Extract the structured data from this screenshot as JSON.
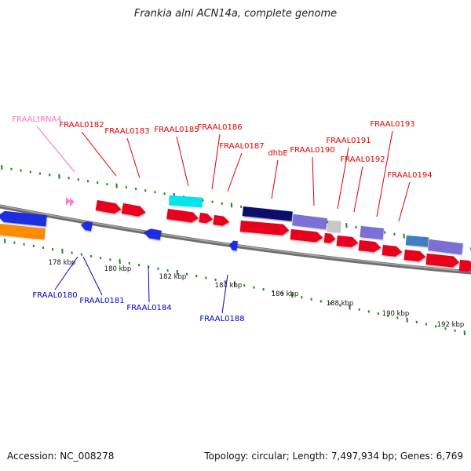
{
  "title": "Frankia alni ACN14a, complete genome",
  "footer": {
    "accession": "Accession: NC_008278",
    "stats": "Topology: circular; Length: 7,497,934 bp; Genes: 6,769"
  },
  "colors": {
    "backbone": "#8a8a8a",
    "tick": "#2e7d2e",
    "forward_label": "#e00000",
    "reverse_label": "#0000cc",
    "trna_label": "#ff70c0"
  },
  "scale_labels": [
    "178 kbp",
    "180 kbp",
    "182 kbp",
    "184 kbp",
    "186 kbp",
    "188 kbp",
    "190 kbp",
    "192 kbp"
  ],
  "forward_labels": [
    "FRAALtRNA4",
    "FRAAL0182",
    "FRAAL0183",
    "FRAAL0185",
    "FRAAL0186",
    "FRAAL0187",
    "dhbE",
    "FRAAL0190",
    "FRAAL0191",
    "FRAAL0192",
    "FRAAL0193",
    "FRAAL0194"
  ],
  "reverse_labels": [
    "FRAAL0180",
    "FRAAL0181",
    "FRAAL0184",
    "FRAAL0188"
  ],
  "feature_colors": {
    "cds": "#e8001a",
    "rrna_blue": "#1f2fe0",
    "orange": "#ff8c00",
    "cyan": "#00e5ee",
    "navy": "#0b0b6e",
    "lavender": "#7b6fd6",
    "grey": "#c8c8c8",
    "steel": "#3f7fbf",
    "trna": "#ff80c8"
  }
}
